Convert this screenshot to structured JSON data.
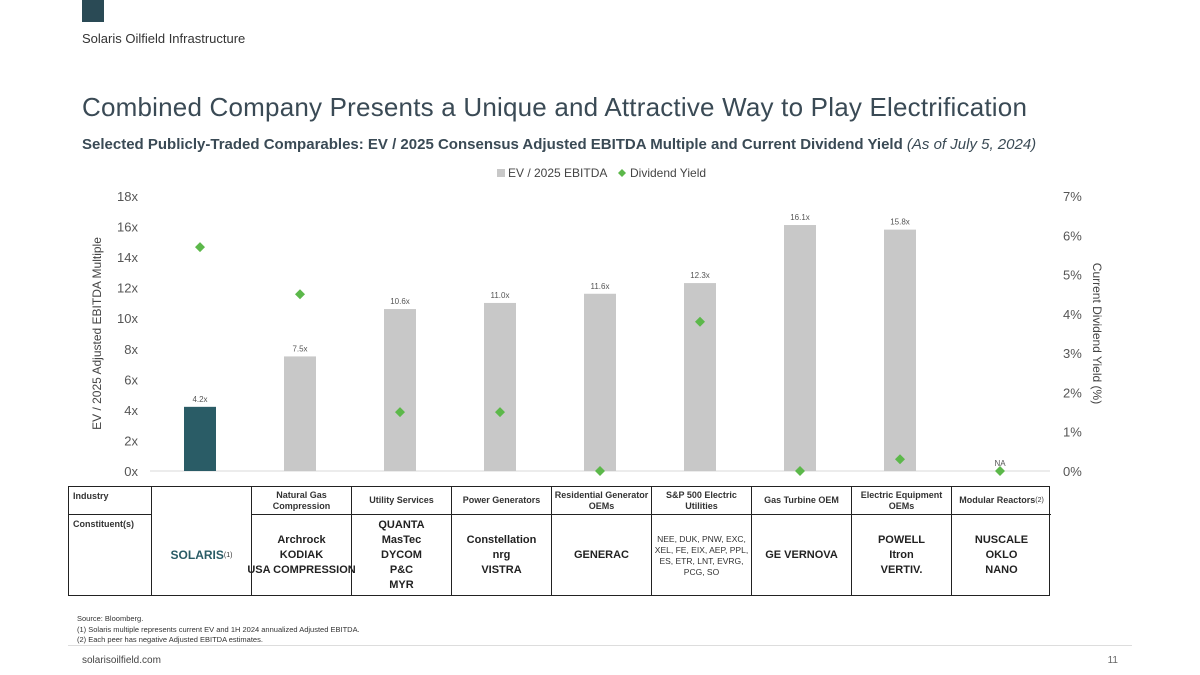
{
  "header": {
    "company": "Solaris Oilfield Infrastructure",
    "title": "Combined Company Presents a Unique and Attractive Way to Play Electrification",
    "subtitle_bold": "Selected Publicly-Traded Comparables: EV / 2025 Consensus Adjusted EBITDA Multiple and Current Dividend Yield",
    "subtitle_italic": "(As of July 5, 2024)"
  },
  "chart_data": {
    "type": "bar",
    "categories": [
      "Solaris",
      "Natural Gas Compression",
      "Utility Services",
      "Power Generators",
      "Residential Generator OEMs",
      "S&P 500 Electric Utilities",
      "Gas Turbine OEM",
      "Electric Equipment OEMs",
      "Modular Reactors"
    ],
    "series": [
      {
        "name": "EV / 2025 EBITDA",
        "values": [
          4.2,
          7.5,
          10.6,
          11.0,
          11.6,
          12.3,
          16.1,
          15.8,
          null
        ],
        "labels": [
          "4.2x",
          "7.5x",
          "10.6x",
          "11.0x",
          "11.6x",
          "12.3x",
          "16.1x",
          "15.8x",
          "NA"
        ],
        "axis": "left"
      },
      {
        "name": "Dividend Yield",
        "values": [
          5.7,
          4.5,
          1.5,
          1.5,
          0.0,
          3.8,
          0.0,
          0.3,
          0.0
        ],
        "axis": "right"
      }
    ],
    "ylabel_left": "EV / 2025 Adjusted EBITDA Multiple",
    "ylabel_right": "Current  Dividend Yield (%)",
    "ylim_left": [
      0,
      18
    ],
    "ylim_right": [
      0,
      7
    ],
    "yticks_left": [
      "0x",
      "2x",
      "4x",
      "6x",
      "8x",
      "10x",
      "12x",
      "14x",
      "16x",
      "18x"
    ],
    "yticks_right": [
      "0%",
      "1%",
      "2%",
      "3%",
      "4%",
      "5%",
      "6%",
      "7%"
    ],
    "colors": {
      "highlight": "#2a5c66",
      "bar": "#c8c8c8",
      "diamond": "#5cb84a"
    }
  },
  "table": {
    "industry_label": "Industry",
    "constituent_label": "Constituent(s)",
    "columns": [
      {
        "header": "Natural Gas Compression",
        "logos": [
          "Archrock",
          "KODIAK",
          "USA COMPRESSION"
        ]
      },
      {
        "header": "Utility Services",
        "logos": [
          "QUANTA",
          "MasTec",
          "DYCOM",
          "P&C",
          "MYR"
        ]
      },
      {
        "header": "Power Generators",
        "logos": [
          "Constellation",
          "nrg",
          "VISTRA"
        ]
      },
      {
        "header": "Residential Generator OEMs",
        "logos": [
          "GENERAC"
        ]
      },
      {
        "header": "S&P 500 Electric Utilities",
        "text": "NEE, DUK, PNW, EXC, XEL, FE, EIX, AEP, PPL, ES, ETR, LNT, EVRG, PCG, SO"
      },
      {
        "header": "Gas Turbine OEM",
        "logos": [
          "GE VERNOVA"
        ]
      },
      {
        "header": "Electric Equipment OEMs",
        "logos": [
          "POWELL",
          "Itron",
          "VERTIV."
        ]
      },
      {
        "header": "Modular Reactors",
        "logos": [
          "NUSCALE",
          "OKLO",
          "NANO"
        ]
      }
    ],
    "solaris_logo": "SOLARIS",
    "solaris_footnote": "(1)",
    "reactor_footnote": "(2)"
  },
  "notes": [
    "Source: Bloomberg.",
    "(1)      Solaris multiple represents current EV and 1H 2024 annualized Adjusted EBITDA.",
    "(2)      Each peer has negative Adjusted EBITDA estimates."
  ],
  "footer": {
    "site": "solarisoilfield.com",
    "page": "11"
  }
}
